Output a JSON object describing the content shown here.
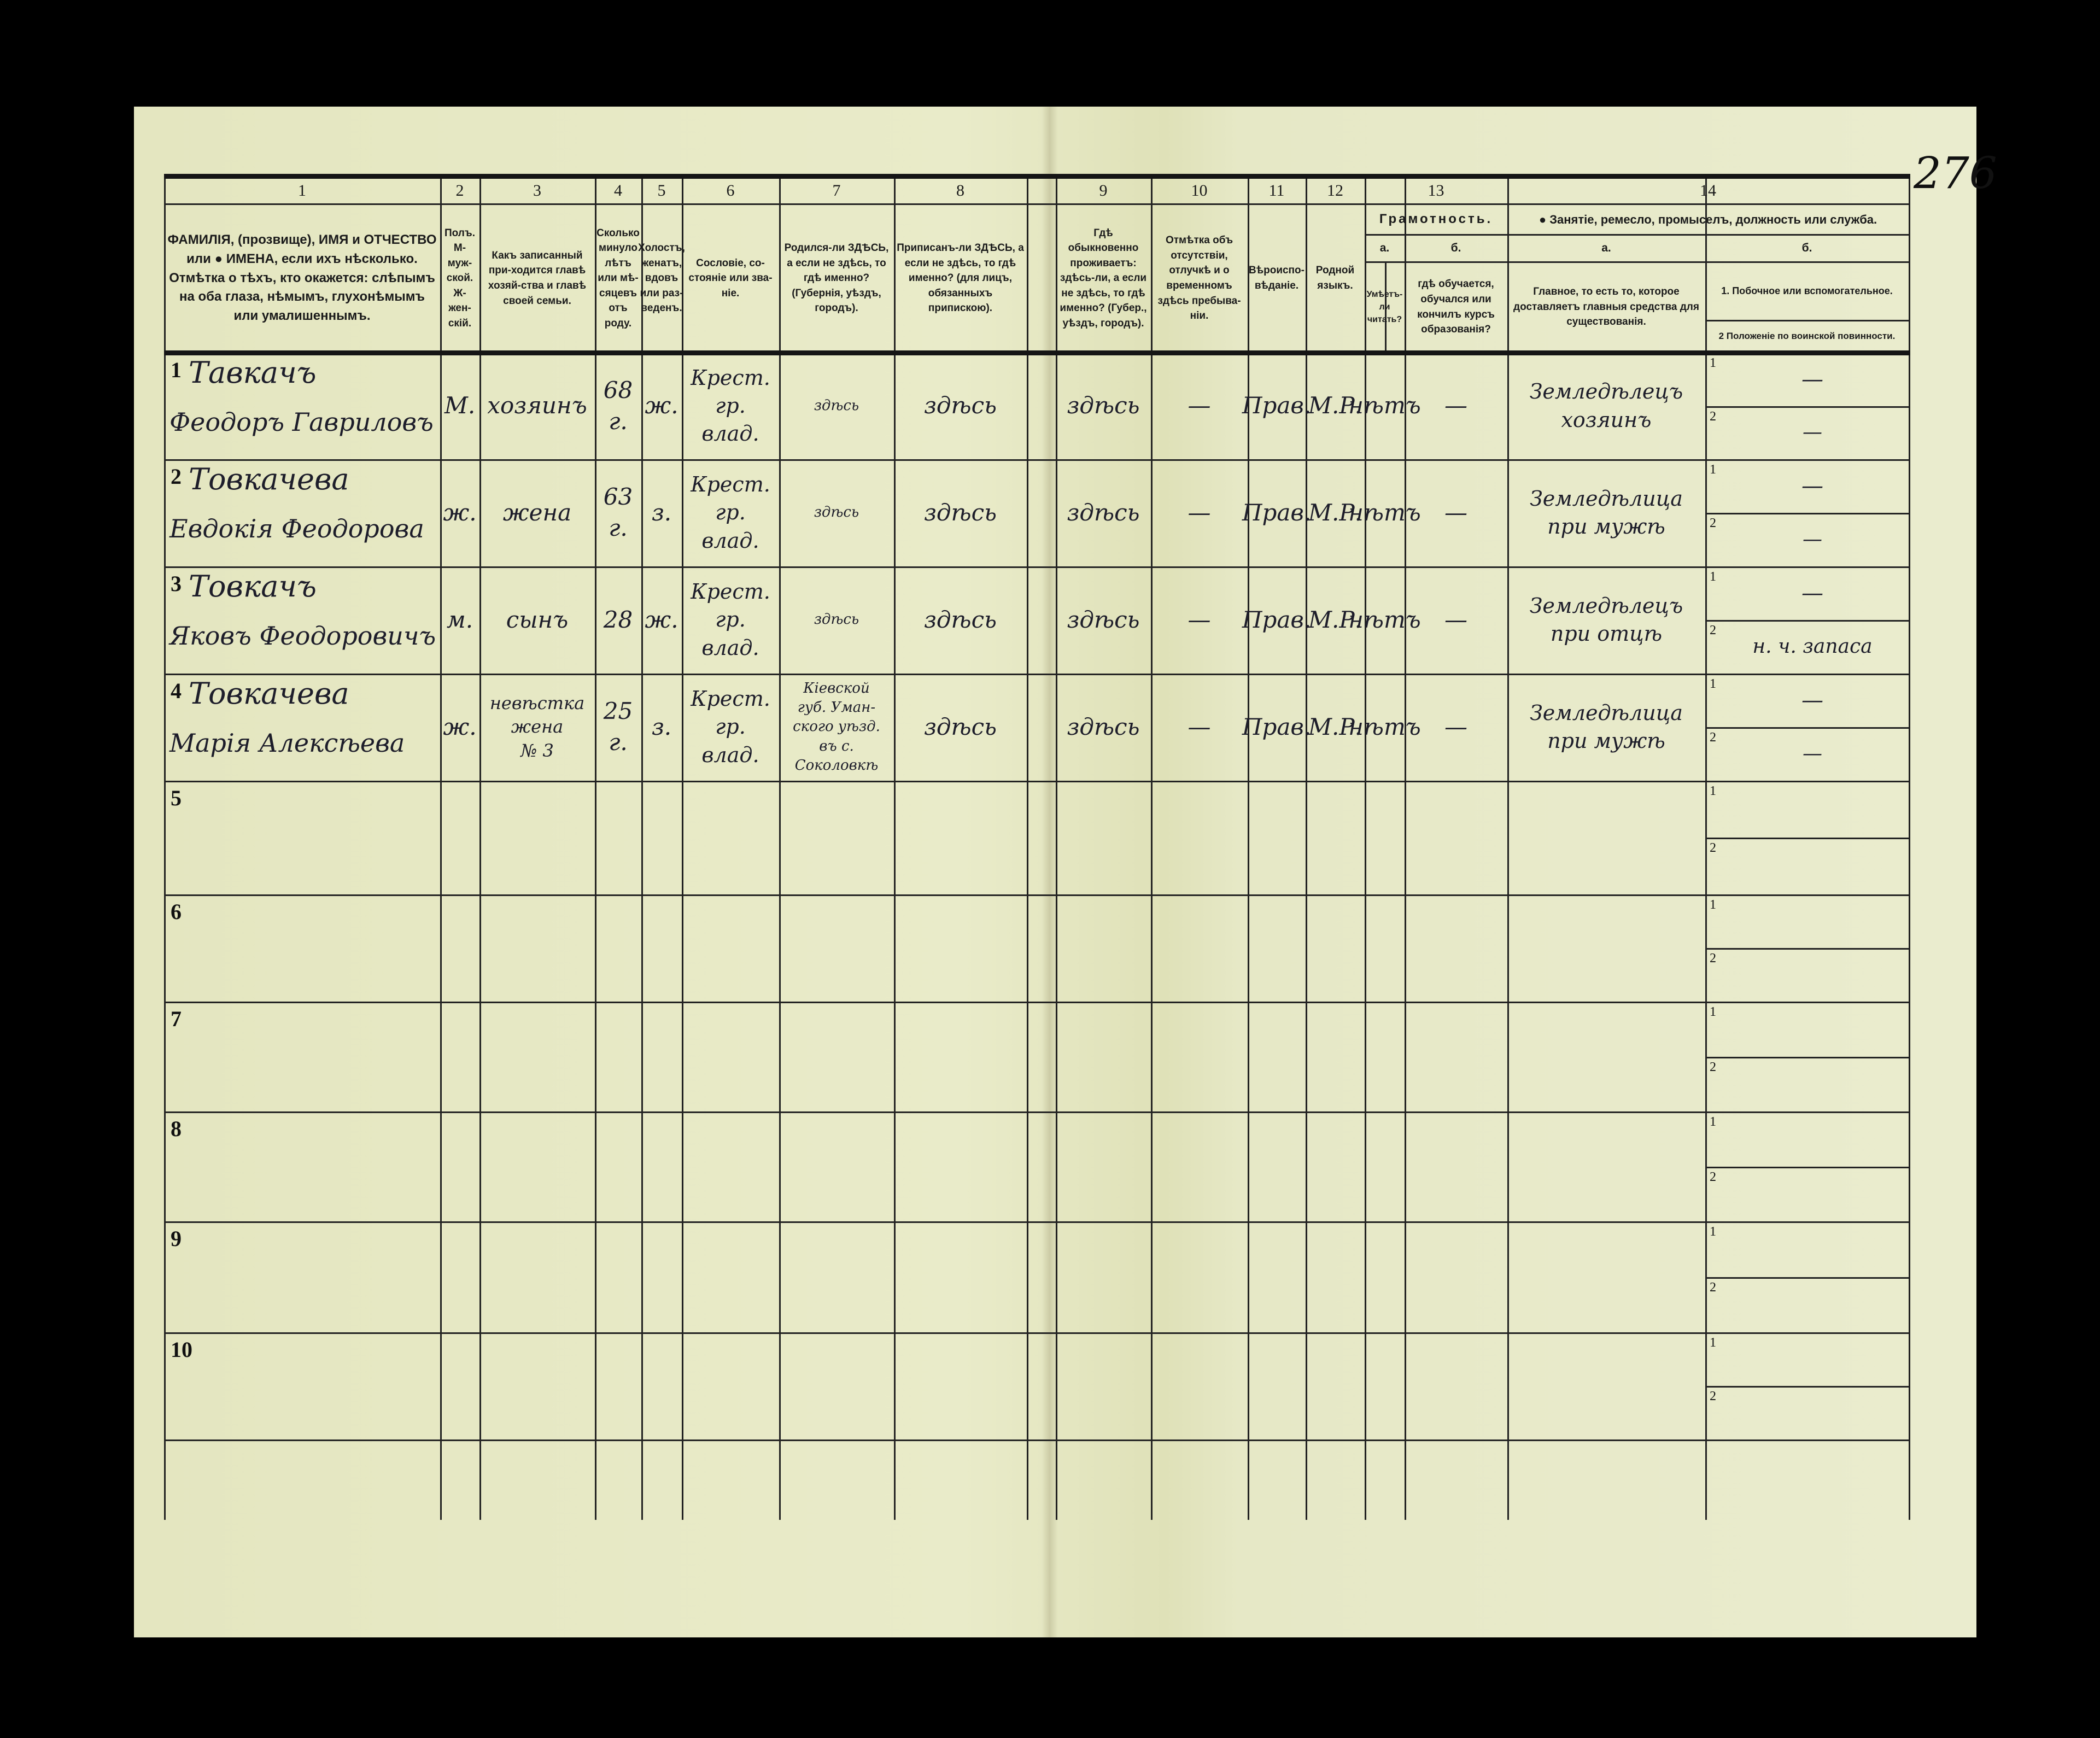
{
  "page_number": "276",
  "header": {
    "col_numbers": [
      "1",
      "2",
      "3",
      "4",
      "5",
      "6",
      "7",
      "8",
      "9",
      "10",
      "11",
      "12",
      "13",
      "14"
    ],
    "col1": "ФАМИЛІЯ, (прозвище), ИМЯ и ОТЧЕСТВО или ● ИМЕНА, если ихъ нѣсколько. Отмѣтка о тѣхъ, кто окажется: слѣпымъ на оба глаза, нѣмымъ, глухонѣмымъ или умалишеннымъ.",
    "col2": "Полъ. М-муж-ской. Ж-жен-скій.",
    "col3": "Какъ записанный при-ходится главѣ хозяй-ства и главѣ своей семьи.",
    "col4": "Сколько минуло лѣтъ или мѣ-сяцевъ отъ роду.",
    "col5": "Холостъ, женатъ, вдовъ или раз-веденъ.",
    "col6": "Сословіе, со-стояніе или зва-ніе.",
    "col7": "Родился-ли ЗДѢСЬ, а если не здѣсь, то гдѣ именно? (Губернія, уѣздъ, городъ).",
    "col8": "Приписанъ-ли ЗДѢСЬ, а если не здѣсь, то гдѣ именно? (для лицъ, обязанныхъ припискою).",
    "col9": "Гдѣ обыкновенно проживаетъ: здѣсь-ли, а если не здѣсь, то гдѣ именно? (Губер., уѣздъ, городъ).",
    "col10": "Отмѣтка объ отсутствіи, отлучкѣ и о временномъ здѣсь пребыва-ніи.",
    "col11": "Вѣроиспо-вѣданіе.",
    "col12": "Родной языкъ.",
    "col13_title": "Грамотность.",
    "col13a_label": "а.",
    "col13b_label": "б.",
    "col13a": "Умѣетъ-ли читать?",
    "col13b": "гдѣ обучается, обучался или кончилъ курсъ образованія?",
    "col14_title": "● Занятіе, ремесло, промыселъ, должность или служба.",
    "col14a_label": "а.",
    "col14b_label": "б.",
    "col14a": "Главное, то есть то, которое доставляетъ главныя средства для существованія.",
    "col14b1": "1. Побочное или вспомогательное.",
    "col14b2": "2 Положеніе по воинской повинности."
  },
  "rows": [
    {
      "num": "1",
      "surname": "Тавкачъ",
      "given": "Феодоръ Гавриловъ",
      "sex": "М.",
      "relation": "хозяинъ",
      "age": "68 г.",
      "marital": "ж.",
      "estate": "Крест.\nгр.\nвлад.",
      "born": "здѣсь",
      "registered": "здѣсь",
      "residence": "здѣсь",
      "absence": "—",
      "religion": "Прав.",
      "language": "М.Р.",
      "literate": "нѣтъ",
      "education": "—",
      "occupation": "Земледѣлецъ\nхозяинъ",
      "occupation_secondary": "—",
      "military": "—"
    },
    {
      "num": "2",
      "surname": "Товкачева",
      "given": "Евдокія Феодорова",
      "sex": "ж.",
      "relation": "жена",
      "age": "63 г.",
      "marital": "з.",
      "estate": "Крест.\nгр.\nвлад.",
      "born": "здѣсь",
      "registered": "здѣсь",
      "residence": "здѣсь",
      "absence": "—",
      "religion": "Прав.",
      "language": "М.Р.",
      "literate": "нѣтъ",
      "education": "—",
      "occupation": "Земледѣлица\nпри мужѣ",
      "occupation_secondary": "—",
      "military": "—"
    },
    {
      "num": "3",
      "surname": "Товкачъ",
      "given": "Яковъ Феодоровичъ",
      "sex": "м.",
      "relation": "сынъ",
      "age": "28",
      "marital": "ж.",
      "estate": "Крест.\nгр.\nвлад.",
      "born": "здѣсь",
      "registered": "здѣсь",
      "residence": "здѣсь",
      "absence": "—",
      "religion": "Прав.",
      "language": "М.Р.",
      "literate": "нѣтъ",
      "education": "—",
      "occupation": "Земледѣлецъ\nпри отцѣ",
      "occupation_secondary": "—",
      "military": "н. ч. запаса"
    },
    {
      "num": "4",
      "surname": "Товкачева",
      "given": "Марія Алексѣева",
      "sex": "ж.",
      "relation": "невѣстка\nжена\n№ 3",
      "age": "25 г.",
      "marital": "з.",
      "estate": "Крест.\nгр.\nвлад.",
      "born": "Кіевской\nгуб. Уман-\nского уѣзд.\nвъ с. Соколовкѣ",
      "registered": "здѣсь",
      "residence": "здѣсь",
      "absence": "—",
      "religion": "Прав.",
      "language": "М.Р.",
      "literate": "нѣтъ",
      "education": "—",
      "occupation": "Земледѣлица\nпри мужѣ",
      "occupation_secondary": "—",
      "military": "—"
    },
    {
      "num": "5"
    },
    {
      "num": "6"
    },
    {
      "num": "7"
    },
    {
      "num": "8"
    },
    {
      "num": "9"
    },
    {
      "num": "10"
    }
  ],
  "sub_labels": [
    "1",
    "2"
  ]
}
